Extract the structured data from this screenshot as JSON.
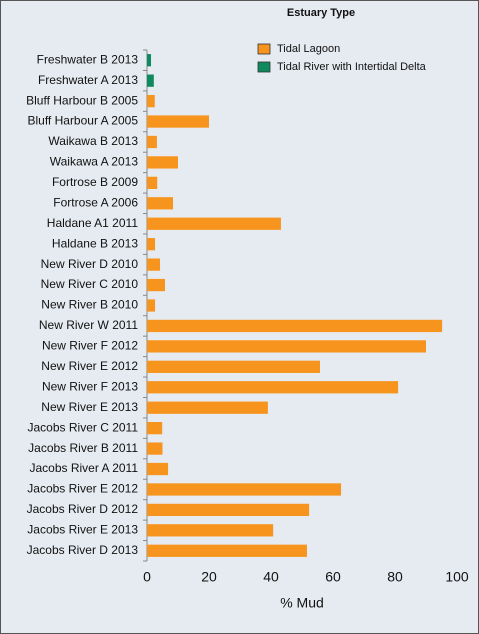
{
  "chart_data": {
    "type": "hbar",
    "x_label": "% Mud",
    "legend_title": "Estuary Type",
    "categories": [
      "Freshwater B 2013",
      "Freshwater A 2013",
      "Bluff Harbour B 2005",
      "Bluff Harbour A 2005",
      "Waikawa B 2013",
      "Waikawa A 2013",
      "Fortrose B 2009",
      "Fortrose A 2006",
      "Haldane A1 2011",
      "Haldane B 2013",
      "New River D 2010",
      "New River C 2010",
      "New River B 2010",
      "New River W 2011",
      "New River F 2012",
      "New River E 2012",
      "New River F 2013",
      "New River E 2013",
      "Jacobs River C 2011",
      "Jacobs River B 2011",
      "Jacobs River A 2011",
      "Jacobs River E 2012",
      "Jacobs River D 2012",
      "Jacobs River E 2013",
      "Jacobs River D 2013"
    ],
    "series": [
      {
        "name": "Tidal Lagoon",
        "color": "#f7941d",
        "values": [
          null,
          null,
          2.5,
          20,
          3.2,
          10,
          3.3,
          8.4,
          43.2,
          2.6,
          4.2,
          5.8,
          2.6,
          95.2,
          90,
          55.8,
          81,
          39,
          4.9,
          5,
          6.8,
          62.6,
          52.3,
          40.7,
          51.6
        ]
      },
      {
        "name": "Tidal River with Intertidal Delta",
        "color": "#0f8a5f",
        "values": [
          1.3,
          2.2,
          null,
          null,
          null,
          null,
          null,
          null,
          null,
          null,
          null,
          null,
          null,
          null,
          null,
          null,
          null,
          null,
          null,
          null,
          null,
          null,
          null,
          null,
          null
        ]
      }
    ],
    "xlim": [
      0,
      100
    ],
    "xticks": [
      0,
      20,
      40,
      60,
      80,
      100
    ]
  }
}
